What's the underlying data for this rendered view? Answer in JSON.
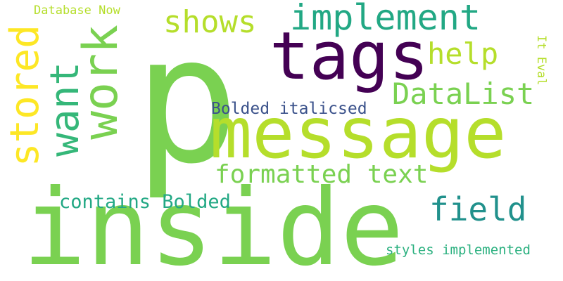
{
  "words": [
    {
      "text": "p",
      "color": "#7ad151"
    },
    {
      "text": "inside",
      "color": "#7ad151"
    },
    {
      "text": "message",
      "color": "#b5de2b"
    },
    {
      "text": "tags",
      "color": "#440154"
    },
    {
      "text": "work",
      "color": "#7ad151"
    },
    {
      "text": "stored",
      "color": "#fde725"
    },
    {
      "text": "want",
      "color": "#35b779"
    },
    {
      "text": "implement",
      "color": "#22a884"
    },
    {
      "text": "shows",
      "color": "#b5de2b"
    },
    {
      "text": "help",
      "color": "#b5de2b"
    },
    {
      "text": "DataList",
      "color": "#7ad151"
    },
    {
      "text": "field",
      "color": "#21918c"
    },
    {
      "text": "formatted text",
      "color": "#7ad151"
    },
    {
      "text": "contains Bolded",
      "color": "#22a884"
    },
    {
      "text": "Bolded italicsed",
      "color": "#3b528b"
    },
    {
      "text": "Database Now",
      "color": "#b5de2b"
    },
    {
      "text": "It Eval",
      "color": "#b5de2b"
    },
    {
      "text": "styles implemented",
      "color": "#2ab07f"
    }
  ]
}
